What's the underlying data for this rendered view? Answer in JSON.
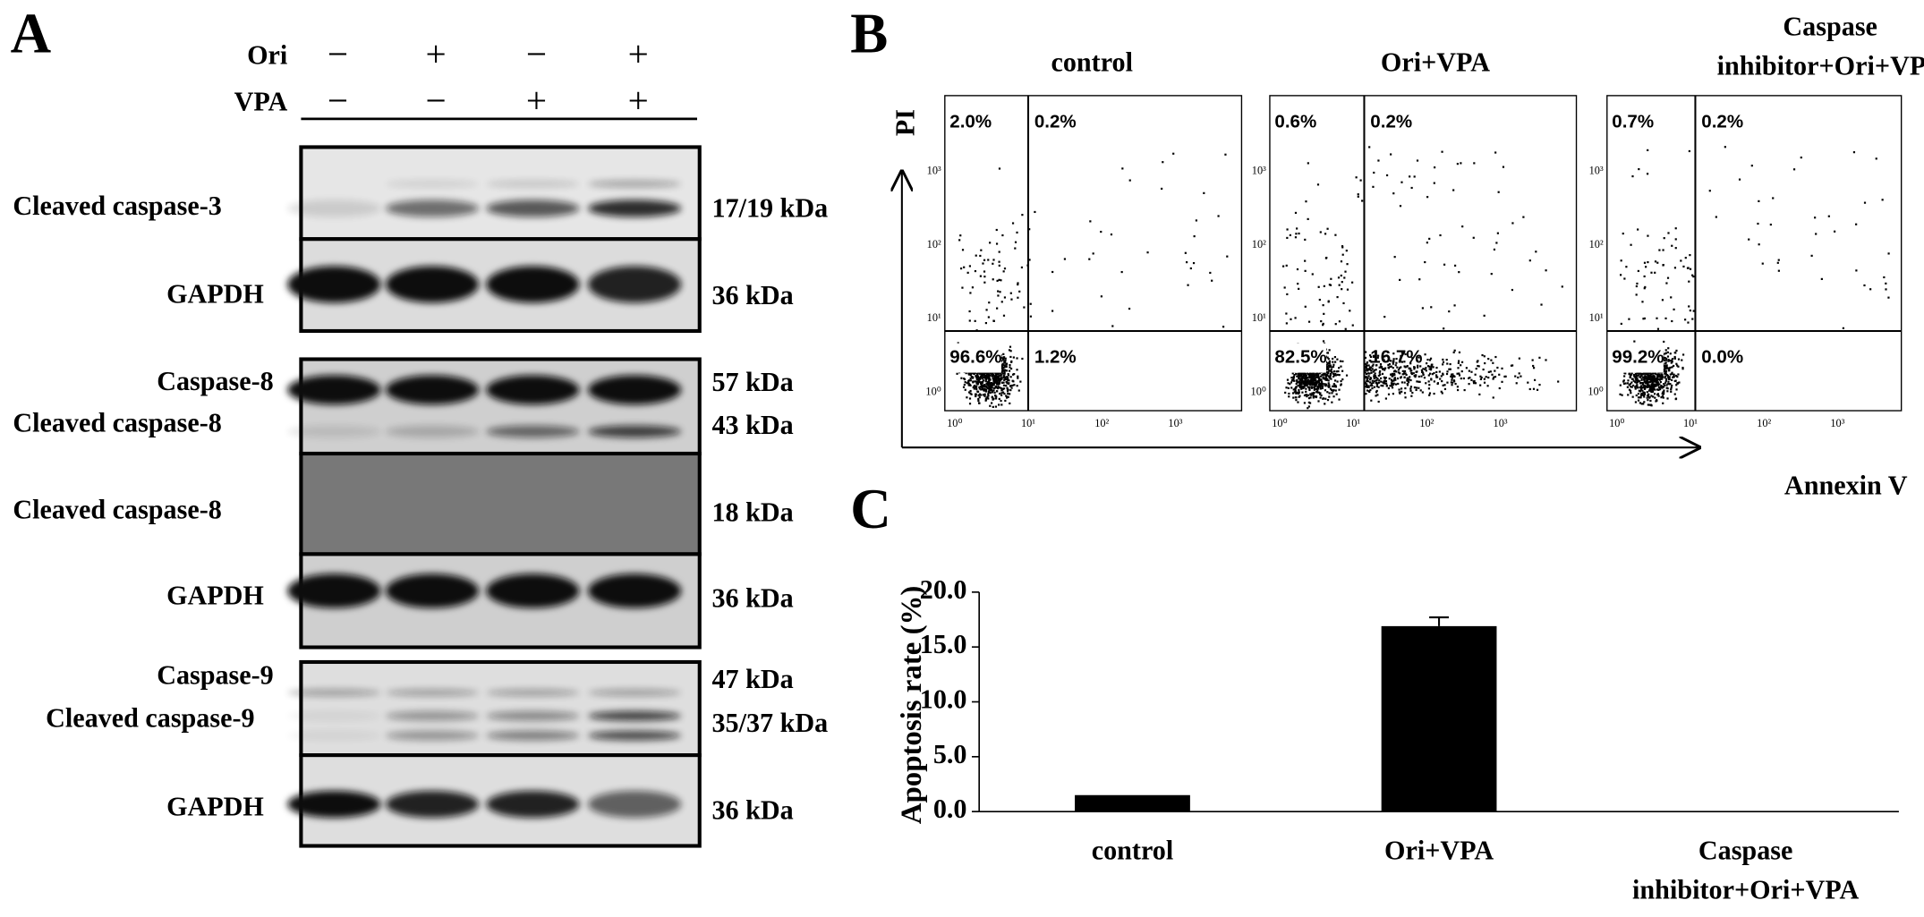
{
  "panel_a": {
    "label": "A",
    "treatments": [
      {
        "name": "Ori",
        "signs": [
          "−",
          "+",
          "−",
          "+"
        ]
      },
      {
        "name": "VPA",
        "signs": [
          "−",
          "−",
          "+",
          "+"
        ]
      }
    ],
    "blots": [
      {
        "label": "Cleaved caspase-3",
        "size": "17/19 kDa"
      },
      {
        "label": "GAPDH",
        "size": "36 kDa"
      },
      {
        "label": "Caspase-8",
        "size": "57 kDa"
      },
      {
        "label": "Cleaved caspase-8",
        "size": "43 kDa"
      },
      {
        "label": "Cleaved caspase-8",
        "size": "18 kDa"
      },
      {
        "label": "GAPDH",
        "size": "36 kDa"
      },
      {
        "label": "Caspase-9",
        "size": "47 kDa"
      },
      {
        "label": "Cleaved caspase-9",
        "size": "35/37 kDa"
      },
      {
        "label": "GAPDH",
        "size": "36 kDa"
      }
    ]
  },
  "panel_b": {
    "label": "B",
    "x_axis": "Annexin V",
    "y_axis": "PI",
    "ticks": [
      "10⁰",
      "10¹",
      "10²",
      "10³"
    ],
    "plots": [
      {
        "title": "control",
        "quadrants": [
          "2.0%",
          "0.2%",
          "96.6%",
          "1.2%"
        ]
      },
      {
        "title": "Ori+VPA",
        "quadrants": [
          "0.6%",
          "0.2%",
          "82.5%",
          "16.7%"
        ]
      },
      {
        "title": "Caspase inhibitor+Ori+VPA",
        "quadrants": [
          "0.7%",
          "0.2%",
          "99.2%",
          "0.0%"
        ]
      }
    ]
  },
  "panel_c": {
    "label": "C",
    "chart_data": {
      "type": "bar",
      "y_label": "Apoptosis rate (%)",
      "categories": [
        "control",
        "Ori+VPA",
        "Caspase inhibitor+Ori+VPA"
      ],
      "values": [
        1.5,
        16.9,
        0
      ],
      "errors": [
        null,
        0.8,
        null
      ],
      "color": "#000000",
      "ylim": [
        0,
        20
      ],
      "yticks": [
        {
          "value": 0,
          "label": "0.0"
        },
        {
          "value": 5,
          "label": "5.0"
        },
        {
          "value": 10,
          "label": "10.0"
        },
        {
          "value": 15,
          "label": "15.0"
        },
        {
          "value": 20,
          "label": "20.0"
        }
      ]
    }
  }
}
